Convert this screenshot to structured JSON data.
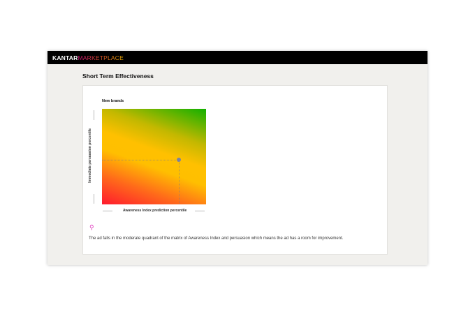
{
  "header": {
    "brand_main": "KANTAR",
    "brand_sub": "MARKETPLACE"
  },
  "section": {
    "title": "Short Term Effectiveness"
  },
  "matrix": {
    "title": "New brands",
    "y_label": "Immediate persuasion percentile",
    "x_label": "Awareness Index prediction percentile",
    "point": {
      "awareness_percentile": 74,
      "persuasion_percentile": 47
    },
    "colors": {
      "low": "#ff1a2e",
      "mid": "#ffc000",
      "high": "#12b000"
    }
  },
  "insight": {
    "icon": "lightbulb-icon",
    "text": "The ad falls in the moderate quadrant of the matrix of Awareness Index and persuasion which means the ad has a room for improvement."
  }
}
